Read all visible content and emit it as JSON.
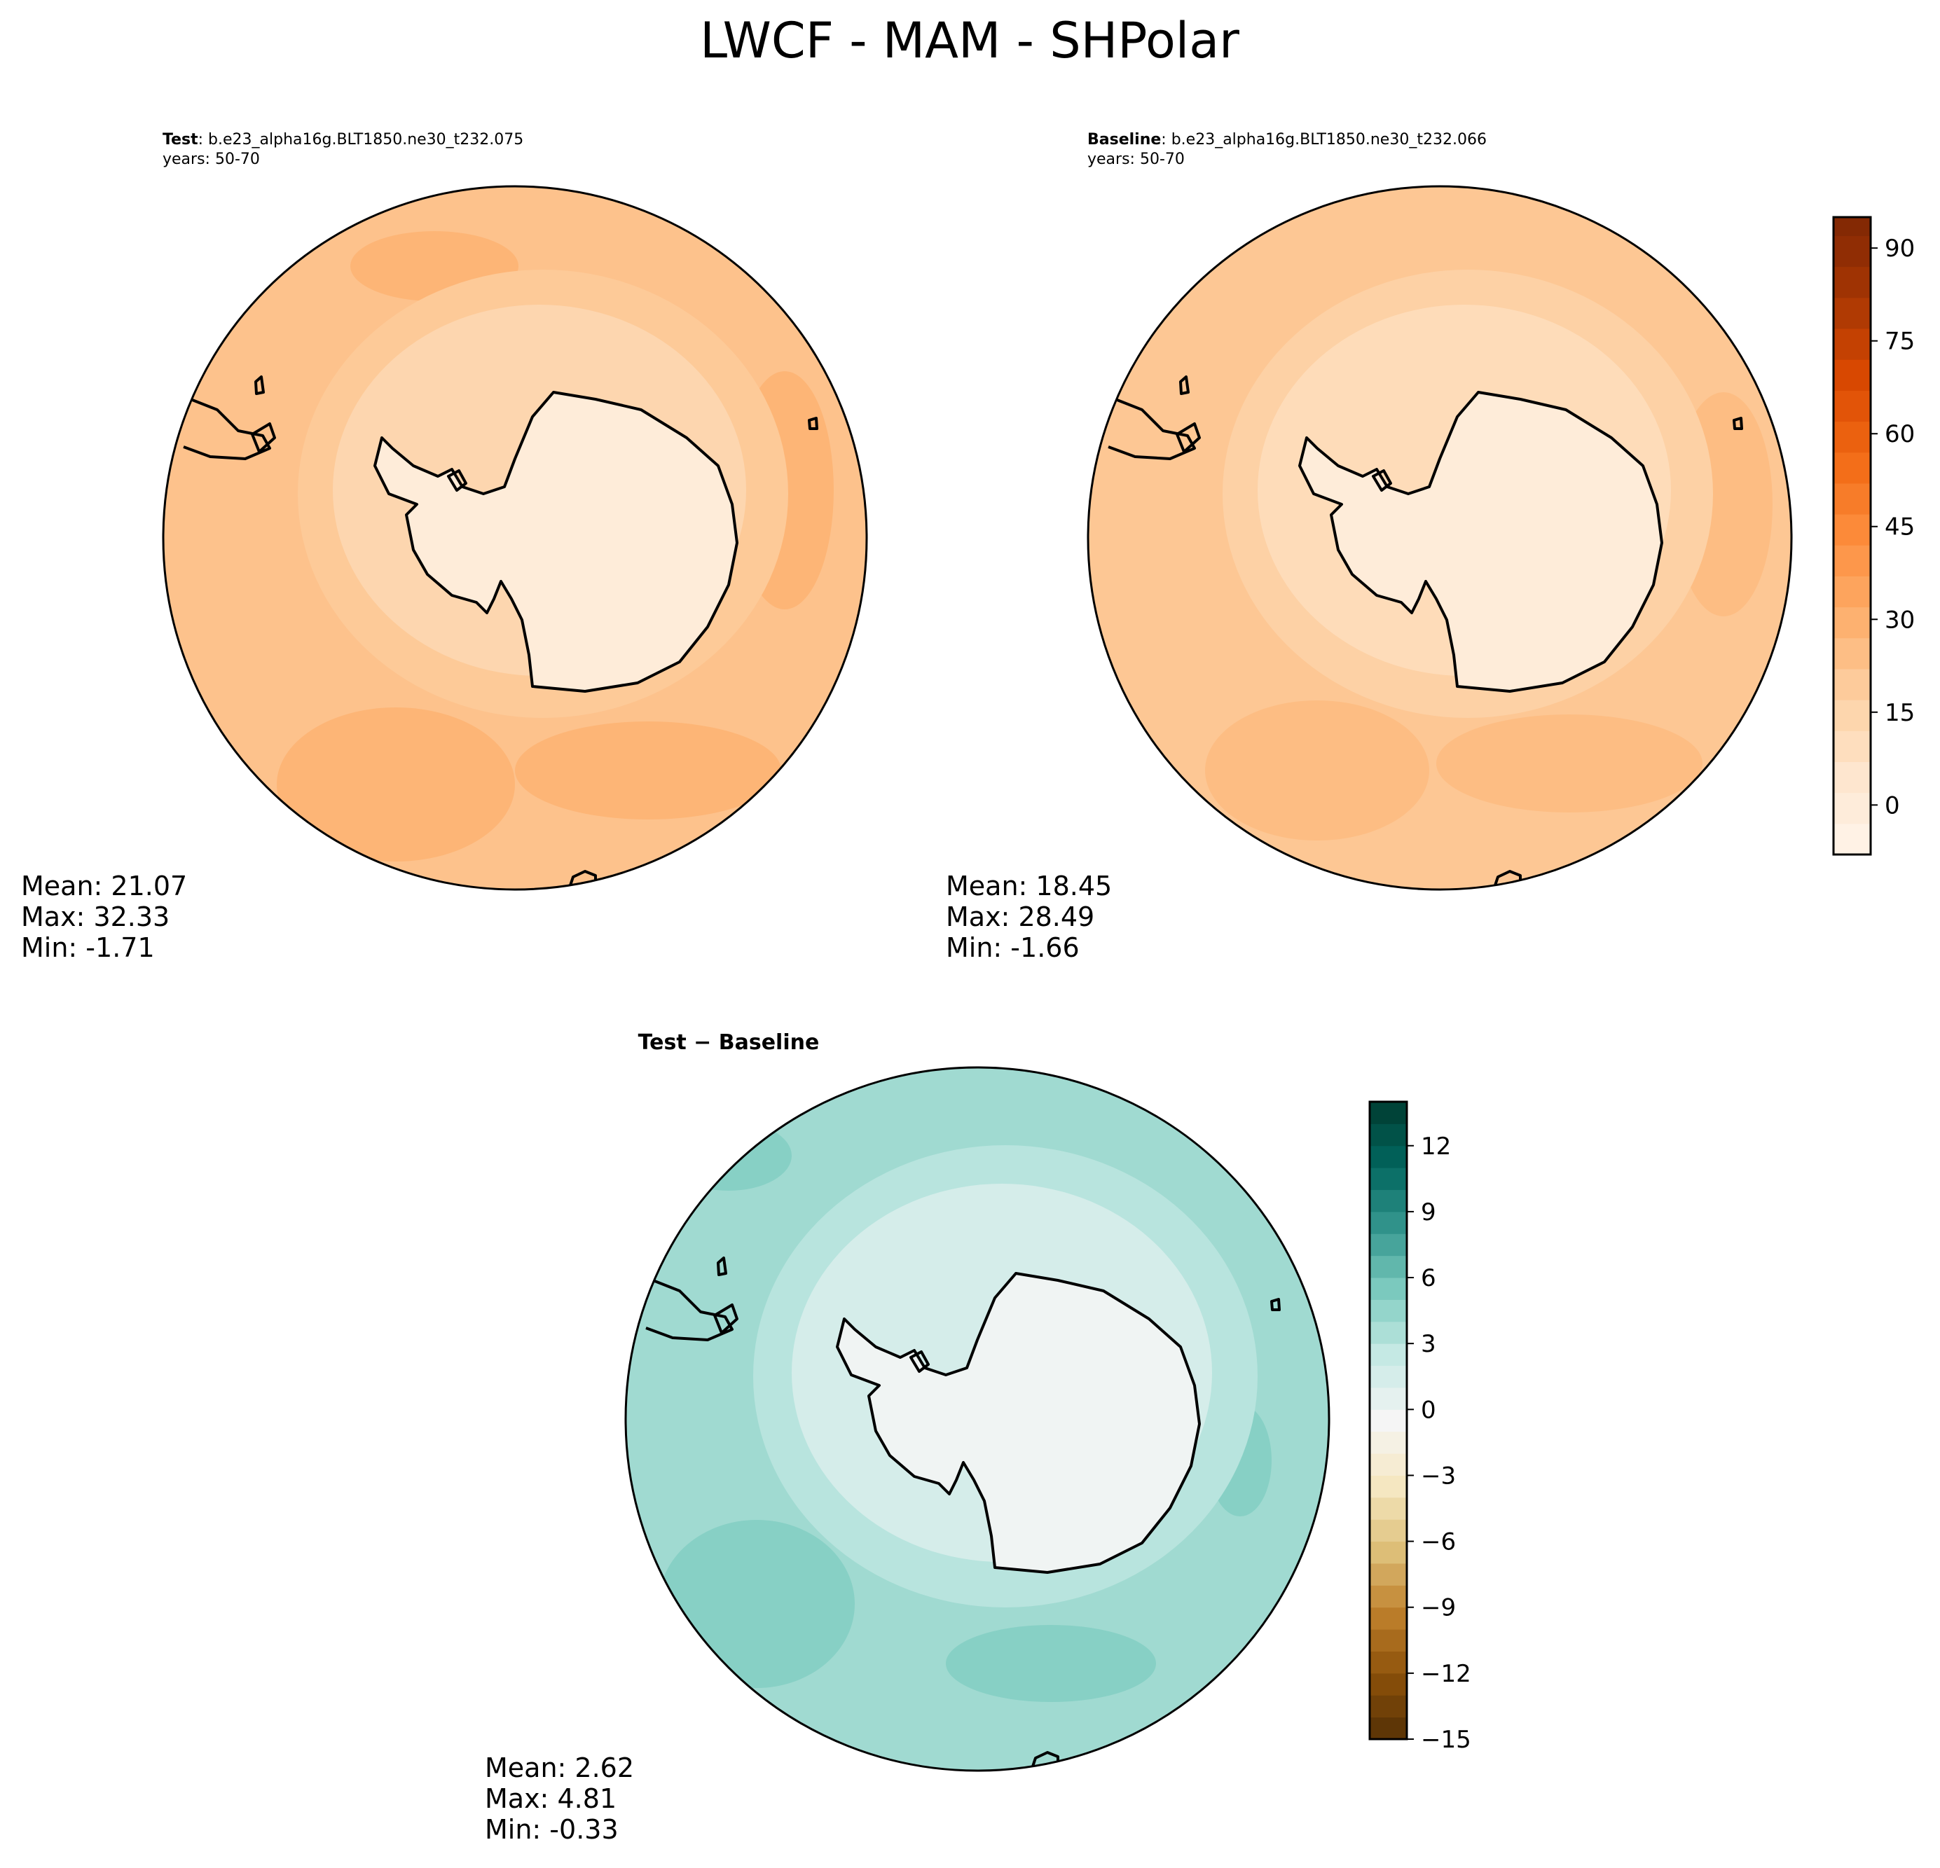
{
  "figure": {
    "title": "LWCF - MAM - SHPolar"
  },
  "chart_data": [
    {
      "type": "heatmap",
      "projection": "south-polar-stereographic",
      "panel": "test",
      "title_bold": "Test",
      "title_case": ": b.e23_alpha16g.BLT1850.ne30_t232.075",
      "years": "years: 50-70",
      "stats": {
        "mean": "Mean: 21.07",
        "max": "Max: 32.33",
        "min": "Min: -1.71"
      },
      "field": {
        "polar": 0,
        "ring1": 14,
        "ring2": 20,
        "outer": 23,
        "warm_spots": 28
      }
    },
    {
      "type": "heatmap",
      "projection": "south-polar-stereographic",
      "panel": "baseline",
      "title_bold": "Baseline",
      "title_case": ": b.e23_alpha16g.BLT1850.ne30_t232.066",
      "years": "years: 50-70",
      "stats": {
        "mean": "Mean: 18.45",
        "max": "Max: 28.49",
        "min": "Min: -1.66"
      },
      "field": {
        "polar": 0,
        "ring1": 11,
        "ring2": 17,
        "outer": 21,
        "warm_spots": 25
      },
      "colorbar": {
        "cmap": "Oranges",
        "vmin": -8,
        "vmax": 95,
        "step": 5,
        "ticks": [
          0,
          15,
          30,
          45,
          60,
          75,
          90
        ],
        "tick_labels": [
          "0",
          "15",
          "30",
          "45",
          "60",
          "75",
          "90"
        ]
      }
    },
    {
      "type": "heatmap",
      "projection": "south-polar-stereographic",
      "panel": "difference",
      "title": "Test − Baseline",
      "stats": {
        "mean": "Mean:  2.62",
        "max": "Max:  4.81",
        "min": "Min: -0.33"
      },
      "field": {
        "polar": -0.2,
        "ring1": 1.5,
        "ring2": 3,
        "outer": 4,
        "warm_spots": 5
      },
      "colorbar": {
        "cmap": "BrBG",
        "vmin": -15,
        "vmax": 14,
        "step": 1,
        "ticks": [
          -15,
          -12,
          -9,
          -6,
          -3,
          0,
          3,
          6,
          9,
          12
        ],
        "tick_labels": [
          "−15",
          "−12",
          "−9",
          "−6",
          "−3",
          "0",
          "3",
          "6",
          "9",
          "12"
        ]
      }
    }
  ],
  "colors": {
    "oranges": [
      "#fff5eb",
      "#fee6ce",
      "#fdd0a2",
      "#fdae6b",
      "#fd8d3c",
      "#f16913",
      "#d94801",
      "#a63603",
      "#7f2704"
    ],
    "brbg": [
      "#543005",
      "#8c510a",
      "#bf812d",
      "#dfc27d",
      "#f6e8c3",
      "#f5f5f5",
      "#c7eae5",
      "#80cdc1",
      "#35978f",
      "#01665e",
      "#003c30"
    ],
    "coast": "#000000"
  }
}
